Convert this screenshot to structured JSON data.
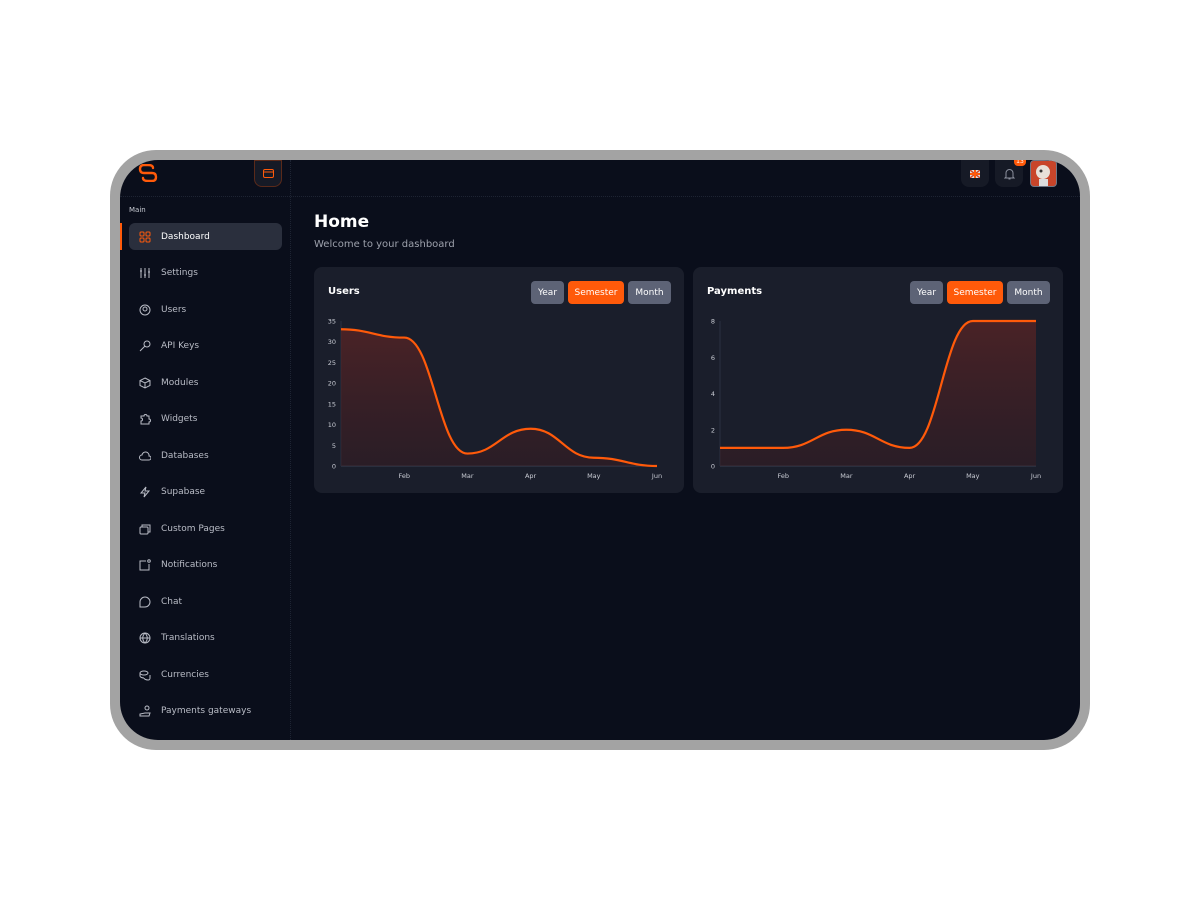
{
  "sidebar": {
    "section": "Main",
    "items": [
      {
        "label": "Dashboard",
        "icon": "grid-icon",
        "active": true
      },
      {
        "label": "Settings",
        "icon": "sliders-icon"
      },
      {
        "label": "Users",
        "icon": "users-icon"
      },
      {
        "label": "API Keys",
        "icon": "key-icon"
      },
      {
        "label": "Modules",
        "icon": "cube-icon"
      },
      {
        "label": "Widgets",
        "icon": "puzzle-icon"
      },
      {
        "label": "Databases",
        "icon": "cloud-icon"
      },
      {
        "label": "Supabase",
        "icon": "bolt-icon"
      },
      {
        "label": "Custom Pages",
        "icon": "pages-icon"
      },
      {
        "label": "Notifications",
        "icon": "notification-icon"
      },
      {
        "label": "Chat",
        "icon": "chat-icon"
      },
      {
        "label": "Translations",
        "icon": "globe-icon"
      },
      {
        "label": "Currencies",
        "icon": "coins-icon"
      },
      {
        "label": "Payments gateways",
        "icon": "hand-coin-icon"
      }
    ]
  },
  "header": {
    "notification_count": "13"
  },
  "page": {
    "title": "Home",
    "subtitle": "Welcome to your dashboard"
  },
  "colors": {
    "accent": "#ff5a0a",
    "background": "#0a0e1b",
    "card": "#1a1e2b"
  },
  "chart_data": [
    {
      "type": "area",
      "title": "Users",
      "filters": [
        "Year",
        "Semester",
        "Month"
      ],
      "active_filter": "Semester",
      "categories": [
        "",
        "Feb",
        "Mar",
        "Apr",
        "May",
        "Jun"
      ],
      "values": [
        33,
        31,
        3,
        9,
        2,
        0
      ],
      "ylim": [
        0,
        35
      ],
      "yticks": [
        0,
        5,
        10,
        15,
        20,
        25,
        30,
        35
      ]
    },
    {
      "type": "area",
      "title": "Payments",
      "filters": [
        "Year",
        "Semester",
        "Month"
      ],
      "active_filter": "Semester",
      "categories": [
        "",
        "Feb",
        "Mar",
        "Apr",
        "May",
        "Jun"
      ],
      "values": [
        1,
        1,
        2,
        1,
        8,
        8
      ],
      "ylim": [
        0,
        8
      ],
      "yticks": [
        0,
        2,
        4,
        6,
        8
      ]
    }
  ]
}
